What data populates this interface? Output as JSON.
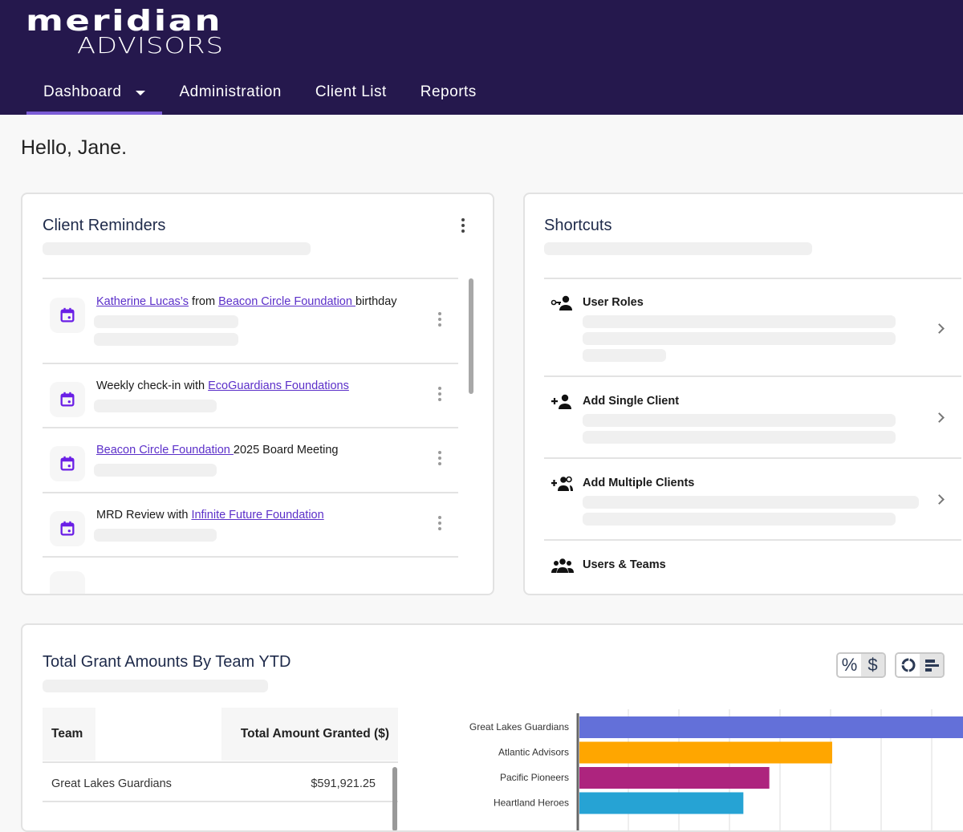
{
  "brand": {
    "line1": "meridian",
    "line2": "ADVISORS"
  },
  "nav": {
    "items": [
      {
        "label": "Dashboard",
        "active": true,
        "has_dropdown": true
      },
      {
        "label": "Administration"
      },
      {
        "label": "Client List"
      },
      {
        "label": "Reports"
      }
    ]
  },
  "greeting": "Hello, Jane.",
  "reminders": {
    "title": "Client Reminders",
    "items": [
      {
        "parts": [
          {
            "text": "Katherine Lucas’s",
            "link": true
          },
          {
            "text": " from "
          },
          {
            "text": "Beacon Circle Foundation ",
            "link": true
          },
          {
            "text": "birthday"
          }
        ],
        "icon": "calendar-icon"
      },
      {
        "parts": [
          {
            "text": "Weekly check-in with "
          },
          {
            "text": "EcoGuardians Foundations",
            "link": true
          }
        ],
        "icon": "calendar-icon"
      },
      {
        "parts": [
          {
            "text": "Beacon Circle Foundation ",
            "link": true
          },
          {
            "text": "2025 Board Meeting"
          }
        ],
        "icon": "calendar-icon"
      },
      {
        "parts": [
          {
            "text": "MRD Review with  "
          },
          {
            "text": "Infinite Future Foundation",
            "link": true
          }
        ],
        "icon": "calendar-icon"
      }
    ]
  },
  "shortcuts": {
    "title": "Shortcuts",
    "items": [
      {
        "label": "User Roles",
        "icon": "user-key-icon"
      },
      {
        "label": "Add Single Client",
        "icon": "add-person-icon"
      },
      {
        "label": "Add Multiple Clients",
        "icon": "add-group-icon"
      },
      {
        "label": "Users & Teams",
        "icon": "group-icon"
      }
    ]
  },
  "grants": {
    "title": "Total Grant Amounts By Team YTD",
    "toggles": {
      "percent": "%",
      "dollar": "$"
    },
    "table": {
      "headers": [
        "Team",
        "Total Amount Granted ($)"
      ],
      "rows": [
        [
          "Great Lakes Guardians",
          "$591,921.25"
        ]
      ]
    }
  },
  "colors": {
    "header": "#25184d",
    "accent": "#7b5cd6",
    "link": "#5b2fc9"
  },
  "chart_data": {
    "type": "bar",
    "orientation": "horizontal",
    "categories": [
      "Great Lakes Guardians",
      "Atlantic Advisors",
      "Pacific Pioneers",
      "Heartland Heroes"
    ],
    "values": [
      591921.25,
      370000,
      278000,
      240000
    ],
    "colors": [
      "#6370d9",
      "#ffa600",
      "#ad247e",
      "#26a3d4"
    ],
    "grid": true
  }
}
